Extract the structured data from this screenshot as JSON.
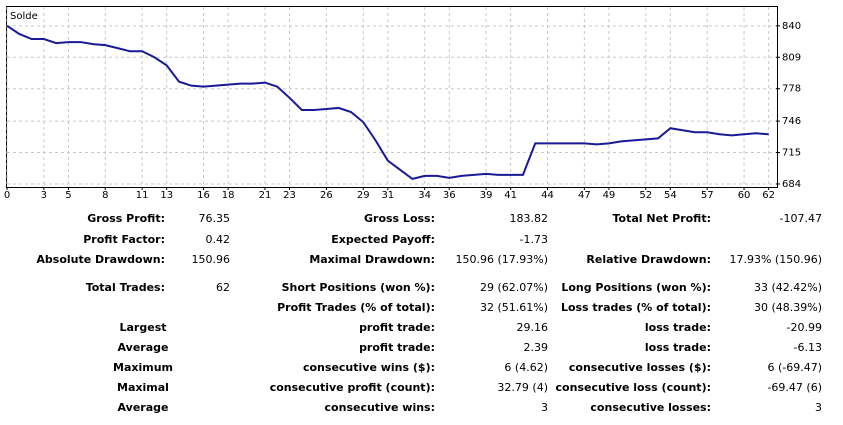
{
  "chart_data": {
    "type": "line",
    "title": "Solde",
    "x": [
      0,
      1,
      2,
      3,
      4,
      5,
      6,
      7,
      8,
      9,
      10,
      11,
      12,
      13,
      14,
      15,
      16,
      17,
      18,
      19,
      20,
      21,
      22,
      23,
      24,
      25,
      26,
      27,
      28,
      29,
      30,
      31,
      32,
      33,
      34,
      35,
      36,
      37,
      38,
      39,
      40,
      41,
      42,
      43,
      44,
      45,
      46,
      47,
      48,
      49,
      50,
      51,
      52,
      53,
      54,
      55,
      56,
      57,
      58,
      59,
      60,
      61,
      62
    ],
    "values": [
      840,
      832,
      827,
      827,
      823,
      824,
      824,
      822,
      821,
      818,
      815,
      815,
      809,
      801,
      785,
      781,
      780,
      781,
      782,
      783,
      783,
      784,
      780,
      769,
      757,
      757,
      758,
      759,
      755,
      745,
      727,
      707,
      698,
      689,
      692,
      692,
      690,
      692,
      693,
      694,
      693,
      693,
      693,
      724,
      724,
      724,
      724,
      724,
      723,
      724,
      726,
      727,
      728,
      729,
      739,
      737,
      735,
      735,
      733,
      732,
      733,
      734,
      733
    ],
    "color": "#1a1a96",
    "xlim": [
      0,
      62.6
    ],
    "xticks": [
      0,
      3,
      5,
      8,
      11,
      13,
      16,
      18,
      21,
      23,
      26,
      29,
      31,
      34,
      36,
      39,
      41,
      44,
      47,
      49,
      52,
      54,
      57,
      60,
      62
    ],
    "ylim": [
      681,
      858.6
    ],
    "yticks": [
      684,
      715,
      746,
      778,
      809,
      840
    ],
    "grid": true
  },
  "report": {
    "rows": [
      [
        "Gross Profit:",
        "76.35",
        "Gross Loss:",
        "183.82",
        "Total Net Profit:",
        "-107.47"
      ],
      [
        "Profit Factor:",
        "0.42",
        "Expected Payoff:",
        "-1.73",
        null,
        null
      ],
      [
        "Absolute Drawdown:",
        "150.96",
        "Maximal Drawdown:",
        "150.96 (17.93%)",
        "Relative Drawdown:",
        "17.93% (150.96)"
      ],
      [
        "Total Trades:",
        "62",
        "Short Positions (won %):",
        "29 (62.07%)",
        "Long Positions (won %):",
        "33 (42.42%)"
      ],
      [
        null,
        null,
        "Profit Trades (% of total):",
        "32 (51.61%)",
        "Loss trades (% of total):",
        "30 (48.39%)"
      ],
      [
        "Largest",
        null,
        "profit trade:",
        "29.16",
        "loss trade:",
        "-20.99"
      ],
      [
        "Average",
        null,
        "profit trade:",
        "2.39",
        "loss trade:",
        "-6.13"
      ],
      [
        "Maximum",
        null,
        "consecutive wins ($):",
        "6 (4.62)",
        "consecutive losses ($):",
        "6 (-69.47)"
      ],
      [
        "Maximal",
        null,
        "consecutive profit (count):",
        "32.79 (4)",
        "consecutive loss (count):",
        "-69.47 (6)"
      ],
      [
        "Average",
        null,
        "consecutive wins:",
        "3",
        "consecutive losses:",
        "3"
      ]
    ]
  }
}
